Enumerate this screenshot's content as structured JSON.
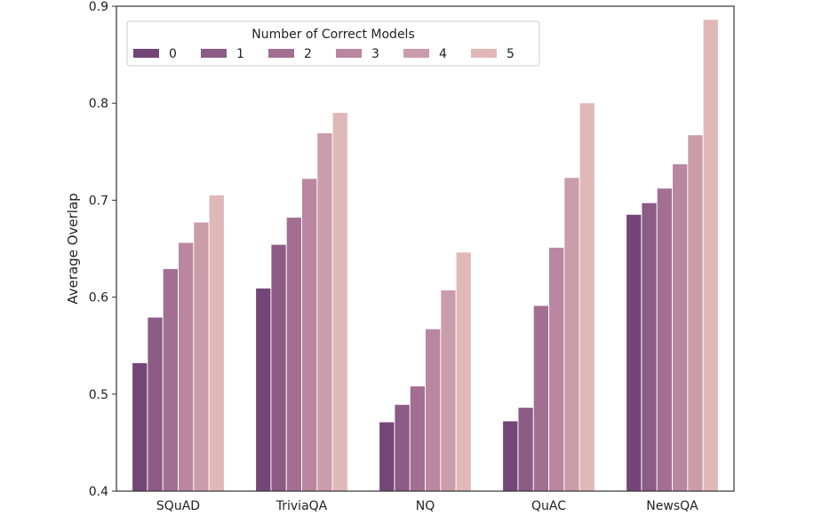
{
  "chart_data": {
    "type": "bar",
    "title": "",
    "xlabel": "",
    "ylabel": "Average Overlap",
    "ylim": [
      0.4,
      0.9
    ],
    "yticks": [
      "0.4",
      "0.5",
      "0.6",
      "0.7",
      "0.8",
      "0.9"
    ],
    "grid": false,
    "categories": [
      "SQuAD",
      "TriviaQA",
      "NQ",
      "QuAC",
      "NewsQA"
    ],
    "legend": {
      "title": "Number of Correct Models",
      "placement": "top-left"
    },
    "series": [
      {
        "name": "0",
        "color": "#744677",
        "values": [
          0.532,
          0.609,
          0.471,
          0.472,
          0.685
        ]
      },
      {
        "name": "1",
        "color": "#8c5b86",
        "values": [
          0.579,
          0.654,
          0.489,
          0.486,
          0.697
        ]
      },
      {
        "name": "2",
        "color": "#a26f93",
        "values": [
          0.629,
          0.682,
          0.508,
          0.591,
          0.712
        ]
      },
      {
        "name": "3",
        "color": "#b9879f",
        "values": [
          0.656,
          0.722,
          0.567,
          0.651,
          0.737
        ]
      },
      {
        "name": "4",
        "color": "#cb9ca9",
        "values": [
          0.677,
          0.769,
          0.607,
          0.723,
          0.767
        ]
      },
      {
        "name": "5",
        "color": "#e0b8b8",
        "values": [
          0.705,
          0.79,
          0.646,
          0.8,
          0.886
        ]
      }
    ]
  }
}
